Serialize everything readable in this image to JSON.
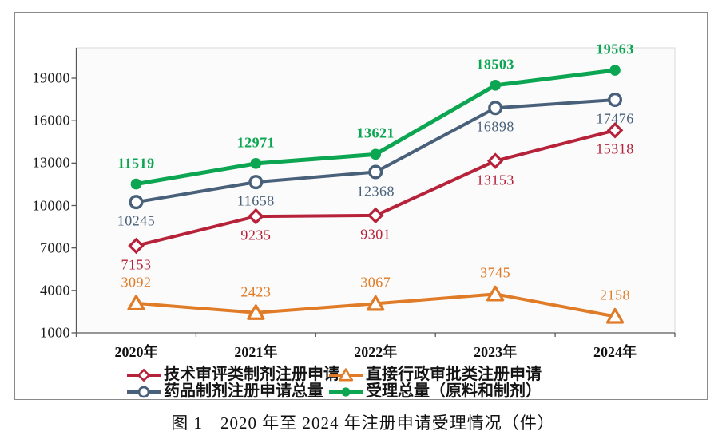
{
  "chart_data": {
    "type": "line",
    "caption": "图 1　2020 年至 2024 年注册申请受理情况（件）",
    "categories": [
      "2020年",
      "2021年",
      "2022年",
      "2023年",
      "2024年"
    ],
    "y_ticks": [
      1000,
      4000,
      7000,
      10000,
      13000,
      16000,
      19000
    ],
    "ylim": [
      1000,
      21145
    ],
    "grid": false,
    "legend_position": "bottom",
    "legend_columns": 2,
    "axis_color": "#595959",
    "plot_border_color": "#D8D8D8",
    "series": [
      {
        "name": "技术审评类制剂注册申请",
        "values": [
          7153,
          9235,
          9301,
          13153,
          15318
        ],
        "color": "#B62239",
        "marker": "diamond-open",
        "label_pos": "below",
        "label_bold": false,
        "line_width": 4
      },
      {
        "name": "直接行政审批类注册申请",
        "values": [
          3092,
          2423,
          3067,
          3745,
          2158
        ],
        "color": "#E07B27",
        "marker": "triangle-open",
        "label_pos": "above",
        "label_bold": false,
        "line_width": 4
      },
      {
        "name": "药品制剂注册申请总量",
        "values": [
          10245,
          11658,
          12368,
          16898,
          17476
        ],
        "color": "#49607A",
        "marker": "circle-open",
        "label_pos": "below",
        "label_bold": false,
        "line_width": 4
      },
      {
        "name": "受理总量（原料和制剂）",
        "values": [
          11519,
          12971,
          13621,
          18503,
          19563
        ],
        "color": "#0CA551",
        "marker": "circle-filled",
        "label_pos": "above",
        "label_bold": true,
        "line_width": 5
      }
    ]
  }
}
